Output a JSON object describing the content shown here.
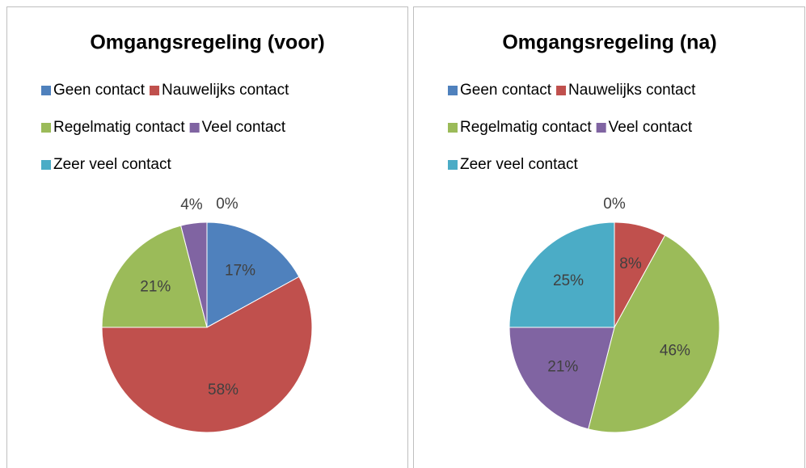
{
  "chart_data": [
    {
      "type": "pie",
      "title": "Omgangsregeling (voor)",
      "categories": [
        "Geen contact",
        "Nauwelijks contact",
        "Regelmatig contact",
        "Veel contact",
        "Zeer veel contact"
      ],
      "values": [
        17,
        58,
        21,
        4,
        0
      ],
      "value_labels": [
        "17%",
        "58%",
        "21%",
        "4%",
        "0%"
      ],
      "colors": [
        "#4f81bd",
        "#c0504d",
        "#9bbb59",
        "#8064a2",
        "#4bacc6"
      ],
      "legend": "top"
    },
    {
      "type": "pie",
      "title": "Omgangsregeling (na)",
      "categories": [
        "Geen contact",
        "Nauwelijks contact",
        "Regelmatig contact",
        "Veel contact",
        "Zeer veel contact"
      ],
      "values": [
        0,
        8,
        46,
        21,
        25
      ],
      "value_labels": [
        "0%",
        "8%",
        "46%",
        "21%",
        "25%"
      ],
      "colors": [
        "#4f81bd",
        "#c0504d",
        "#9bbb59",
        "#8064a2",
        "#4bacc6"
      ],
      "legend": "top"
    }
  ]
}
